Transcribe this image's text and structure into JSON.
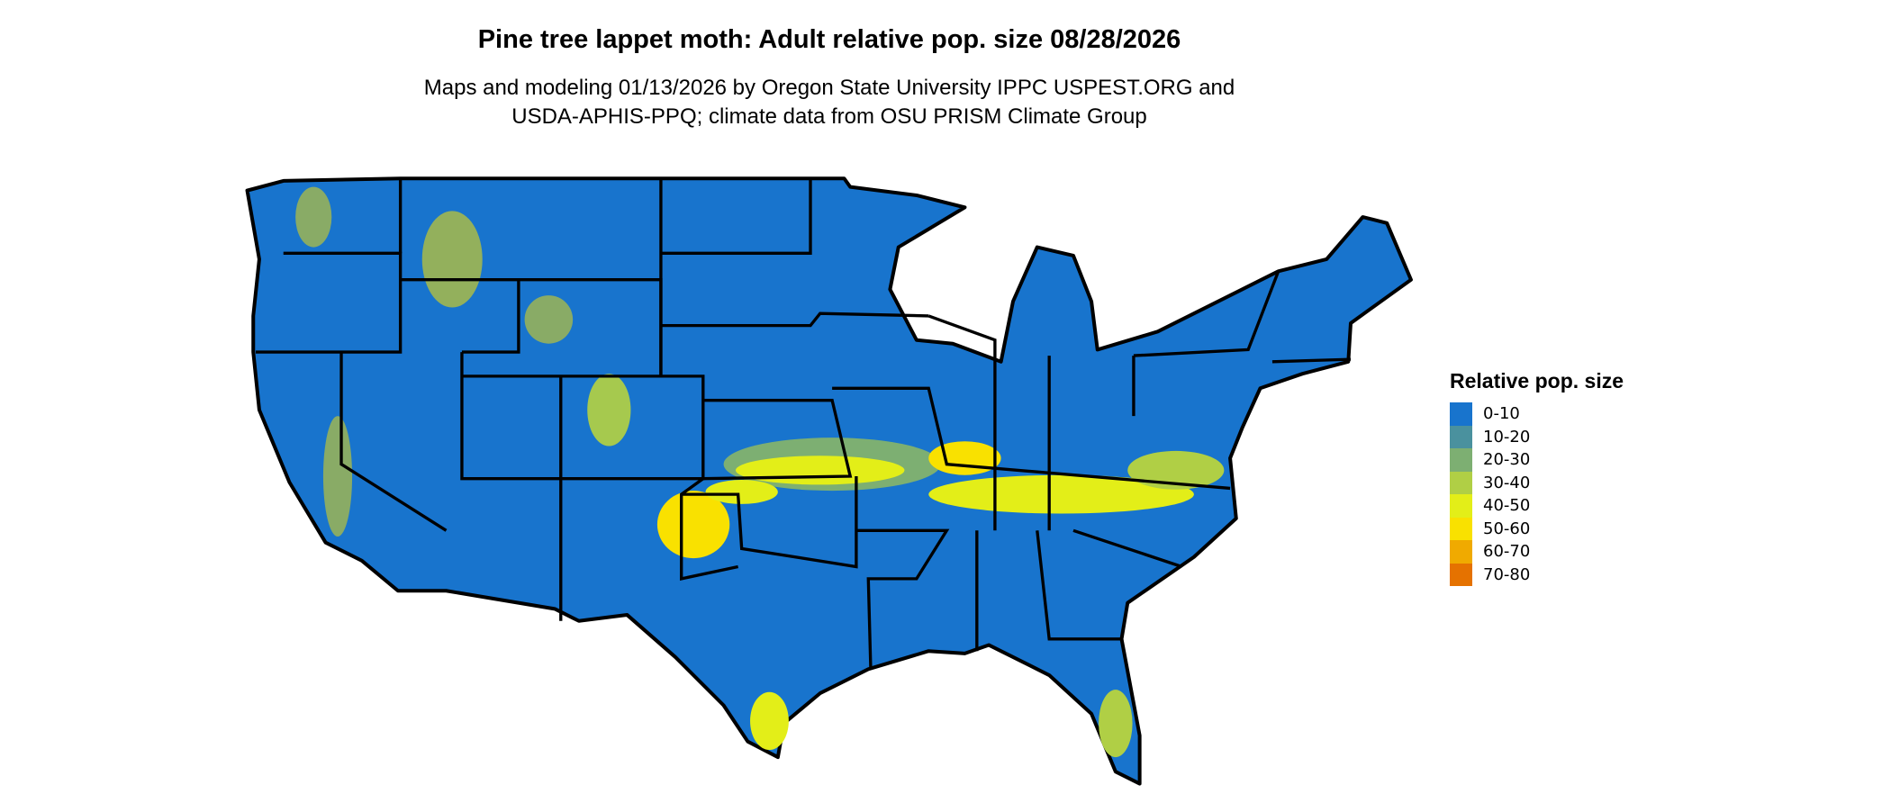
{
  "title": "Pine tree lappet moth: Adult relative pop. size 08/28/2026",
  "subtitle_line1": "Maps and modeling 01/13/2026 by Oregon State University IPPC USPEST.ORG and",
  "subtitle_line2": "USDA-APHIS-PPQ; climate data from OSU PRISM Climate Group",
  "legend": {
    "title": "Relative pop. size",
    "items": [
      {
        "label": "0-10",
        "color": "#1874CD"
      },
      {
        "label": "10-20",
        "color": "#4A919E"
      },
      {
        "label": "20-30",
        "color": "#7DAF72"
      },
      {
        "label": "30-40",
        "color": "#B0CF45"
      },
      {
        "label": "40-50",
        "color": "#E3EE18"
      },
      {
        "label": "50-60",
        "color": "#F9E100"
      },
      {
        "label": "60-70",
        "color": "#F0AA00"
      },
      {
        "label": "70-80",
        "color": "#E57200"
      }
    ]
  }
}
